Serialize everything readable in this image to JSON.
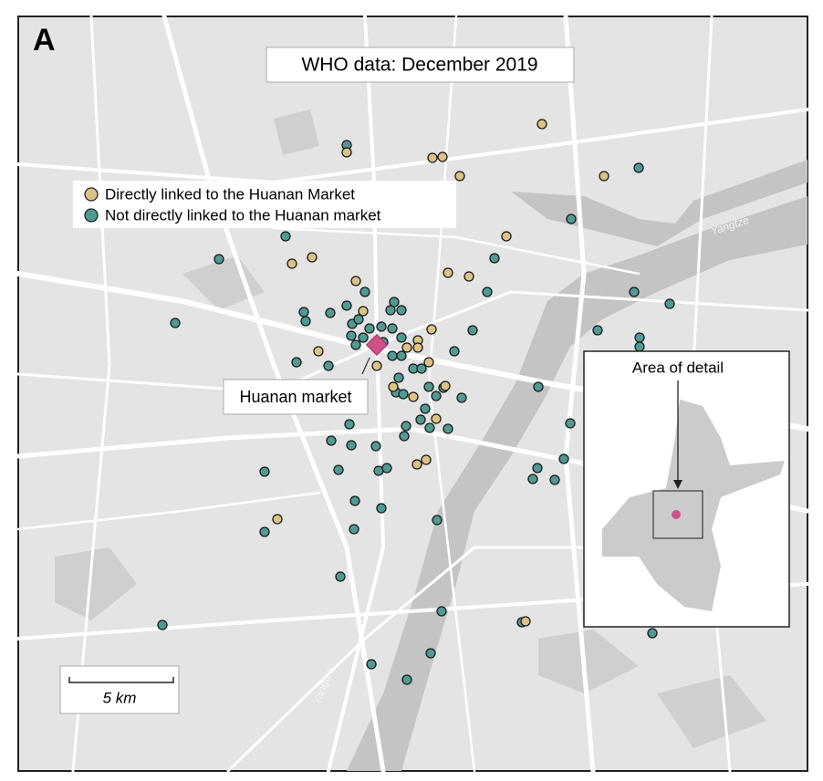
{
  "panel_label": "A",
  "title": "WHO data: December 2019",
  "legend": [
    {
      "label": "Directly linked to the Huanan Market",
      "color": "#dcc285"
    },
    {
      "label": "Not directly linked to the Huanan market",
      "color": "#4f9b93"
    }
  ],
  "market_label": "Huanan market",
  "inset": {
    "title": "Area of detail"
  },
  "scale_bar": "5 km",
  "river_labels": [
    "Yangtze",
    "Yangtze"
  ]
}
